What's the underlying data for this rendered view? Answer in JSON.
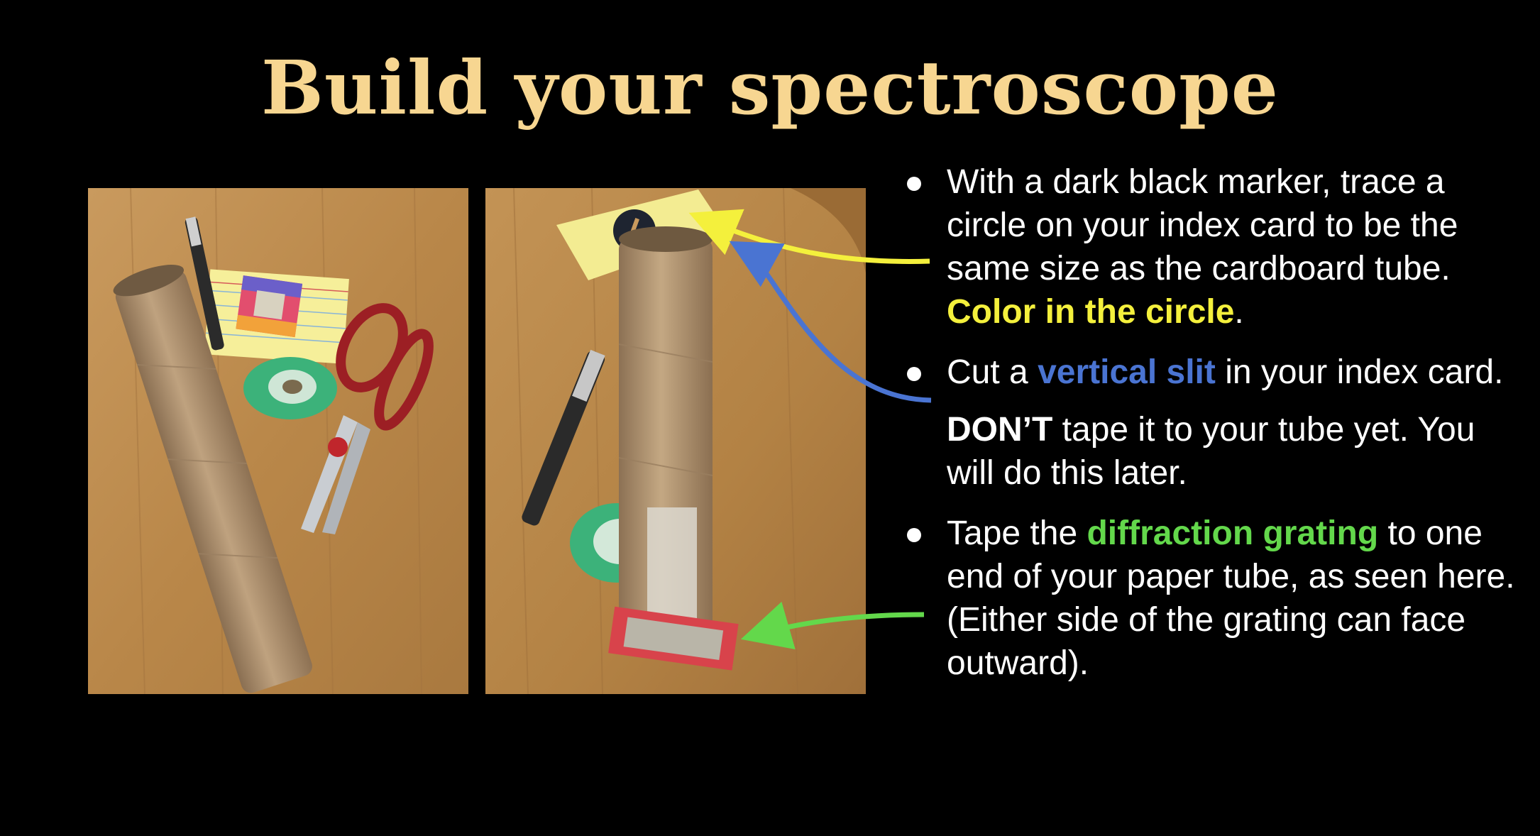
{
  "slide": {
    "title": "Build your spectroscope",
    "bullets": [
      {
        "text_before": "With a dark black marker, trace a circle on your index card to be the same size as the cardboard tube. ",
        "highlight": "Color in the circle",
        "text_after": "."
      },
      {
        "text_before": "Cut a ",
        "highlight": "vertical slit",
        "text_after": " in your index card."
      },
      {
        "text_before": "Tape the ",
        "highlight": "diffraction grating",
        "text_after": " to one end of your paper tube, as seen here. (Either side of the grating can face outward)."
      }
    ],
    "note": {
      "bold": "DON’T",
      "text": " tape it to your tube yet. You will do this later."
    }
  },
  "colors": {
    "background": "#000000",
    "title": "#f7d691",
    "yellow_highlight": "#f4f03c",
    "blue_highlight": "#4a74d2",
    "green_highlight": "#63d84b"
  },
  "photos": [
    {
      "name": "supplies-photo"
    },
    {
      "name": "assembled-spectroscope-photo"
    }
  ]
}
